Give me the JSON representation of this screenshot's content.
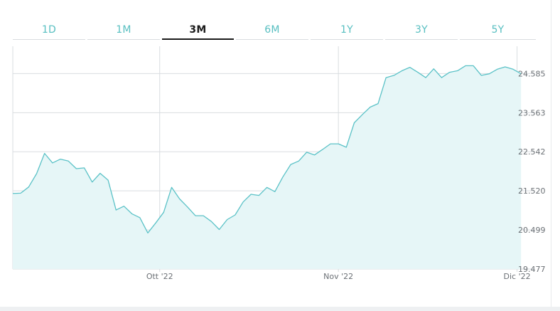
{
  "tabs": [
    {
      "label": "1D",
      "active": false
    },
    {
      "label": "1M",
      "active": false
    },
    {
      "label": "3M",
      "active": true
    },
    {
      "label": "6M",
      "active": false
    },
    {
      "label": "1Y",
      "active": false
    },
    {
      "label": "3Y",
      "active": false
    },
    {
      "label": "5Y",
      "active": false
    }
  ],
  "colors": {
    "line": "#5bc2c7",
    "fill": "#e6f6f7",
    "grid": "#d9dde0",
    "tick_text": "#6b7075",
    "tab_inactive": "#58bfc1",
    "tab_active": "#1c1c1c"
  },
  "chart_data": {
    "type": "area",
    "y_axis_position": "right",
    "ylim": [
      19.477,
      25.3
    ],
    "y_ticks": [
      {
        "value": 24.585,
        "label": "24.585"
      },
      {
        "value": 23.563,
        "label": "23.563"
      },
      {
        "value": 22.542,
        "label": "22.542"
      },
      {
        "value": 21.52,
        "label": "21.520"
      },
      {
        "value": 20.499,
        "label": "20.499"
      },
      {
        "value": 19.477,
        "label": "19.477"
      }
    ],
    "xlim": [
      0,
      63
    ],
    "x_ticks": [
      {
        "index": 18.5,
        "label": "Ott '22"
      },
      {
        "index": 41,
        "label": "Nov '22"
      },
      {
        "index": 63.5,
        "label": "Dic '22"
      }
    ],
    "grid": true,
    "series": [
      {
        "values": [
          21.45,
          21.46,
          21.62,
          21.97,
          22.5,
          22.25,
          22.35,
          22.3,
          22.1,
          22.12,
          21.75,
          21.98,
          21.8,
          21.02,
          21.12,
          20.92,
          20.82,
          20.42,
          20.68,
          20.96,
          21.61,
          21.31,
          21.1,
          20.87,
          20.87,
          20.72,
          20.51,
          20.77,
          20.89,
          21.23,
          21.43,
          21.4,
          21.61,
          21.5,
          21.88,
          22.21,
          22.3,
          22.53,
          22.46,
          22.6,
          22.75,
          22.75,
          22.66,
          23.3,
          23.51,
          23.71,
          23.8,
          24.48,
          24.54,
          24.66,
          24.75,
          24.62,
          24.48,
          24.71,
          24.48,
          24.62,
          24.66,
          24.79,
          24.79,
          24.54,
          24.58,
          24.7,
          24.76,
          24.7,
          24.58
        ]
      }
    ]
  }
}
